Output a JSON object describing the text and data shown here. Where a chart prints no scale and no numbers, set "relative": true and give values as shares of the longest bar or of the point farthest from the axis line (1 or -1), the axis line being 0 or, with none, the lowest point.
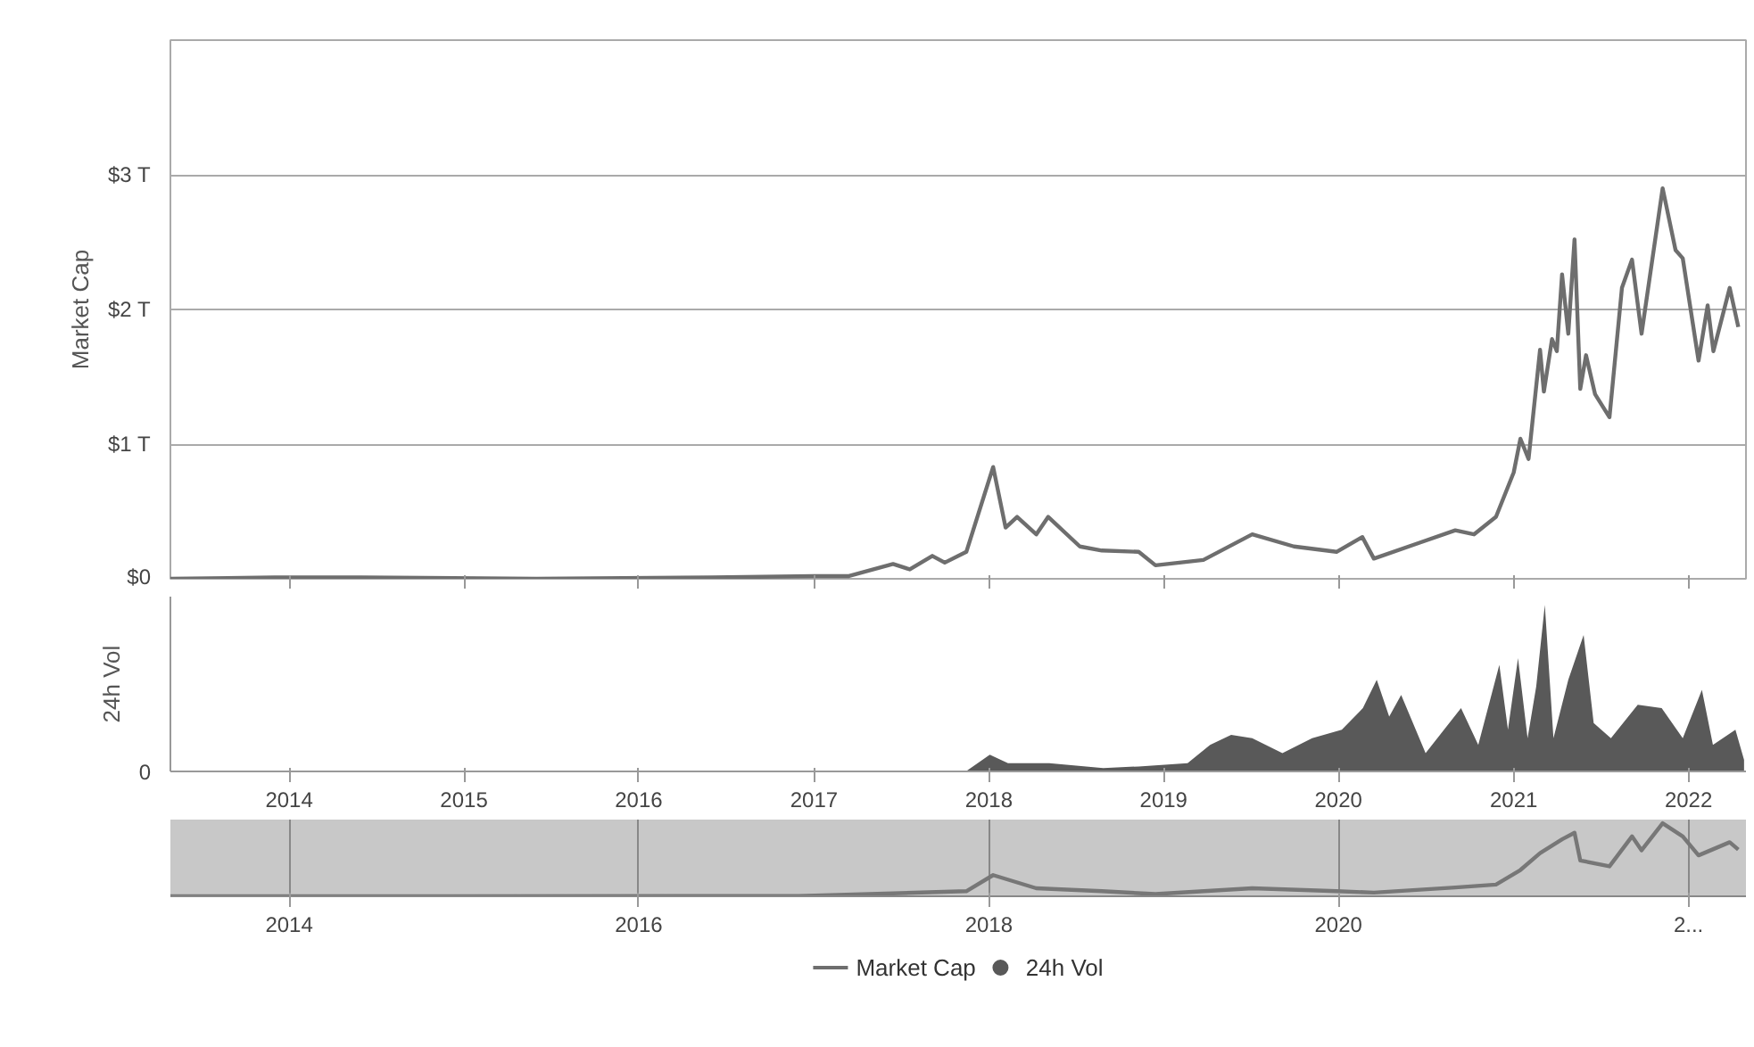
{
  "chart_data": [
    {
      "type": "line",
      "ylabel": "Market Cap",
      "xlim": [
        "2013-04-28",
        "2022-05-01"
      ],
      "xticks": [
        "2014",
        "2015",
        "2016",
        "2017",
        "2018",
        "2019",
        "2020",
        "2021",
        "2022"
      ],
      "ylim": [
        0,
        4
      ],
      "yticks": [
        {
          "value": 0,
          "label": "$0"
        },
        {
          "value": 1,
          "label": "$1 T"
        },
        {
          "value": 2,
          "label": "$2 T"
        },
        {
          "value": 3,
          "label": "$3 T"
        },
        {
          "value": 4,
          "label": null
        }
      ],
      "grid": "y",
      "tick_labels": "y",
      "legend": "bottom",
      "series": [
        {
          "name": "Market Cap",
          "color": "#6e6e6e",
          "x": [
            "2013-04-28",
            "2013-12-01",
            "2014-06-01",
            "2015-06-01",
            "2016-06-01",
            "2017-01-01",
            "2017-03-15",
            "2017-06-15",
            "2017-07-20",
            "2017-09-05",
            "2017-10-01",
            "2017-11-15",
            "2018-01-10",
            "2018-02-05",
            "2018-03-01",
            "2018-04-10",
            "2018-05-05",
            "2018-07-10",
            "2018-08-25",
            "2018-11-10",
            "2018-12-15",
            "2019-03-25",
            "2019-07-05",
            "2019-09-30",
            "2019-12-28",
            "2020-02-20",
            "2020-03-15",
            "2020-06-20",
            "2020-09-01",
            "2020-10-10",
            "2020-11-25",
            "2021-01-01",
            "2021-01-15",
            "2021-02-01",
            "2021-02-25",
            "2021-03-05",
            "2021-03-22",
            "2021-04-01",
            "2021-04-12",
            "2021-04-25",
            "2021-05-08",
            "2021-05-20",
            "2021-06-01",
            "2021-06-20",
            "2021-07-20",
            "2021-08-15",
            "2021-09-05",
            "2021-09-25",
            "2021-11-08",
            "2021-12-05",
            "2021-12-20",
            "2022-01-22",
            "2022-02-10",
            "2022-02-22",
            "2022-03-28",
            "2022-04-15"
          ],
          "values": [
            0.0,
            0.01,
            0.01,
            0.0,
            0.01,
            0.02,
            0.02,
            0.11,
            0.07,
            0.17,
            0.12,
            0.2,
            0.83,
            0.38,
            0.46,
            0.33,
            0.46,
            0.24,
            0.21,
            0.2,
            0.1,
            0.14,
            0.33,
            0.24,
            0.2,
            0.31,
            0.15,
            0.27,
            0.36,
            0.33,
            0.46,
            0.79,
            1.04,
            0.89,
            1.7,
            1.39,
            1.78,
            1.69,
            2.26,
            1.82,
            2.52,
            1.41,
            1.66,
            1.37,
            1.2,
            2.16,
            2.37,
            1.82,
            2.9,
            2.44,
            2.38,
            1.62,
            2.03,
            1.69,
            2.16,
            1.87
          ]
        }
      ]
    },
    {
      "type": "area",
      "ylabel": "24h Vol",
      "relative": true,
      "xlim": [
        "2013-04-28",
        "2022-05-01"
      ],
      "xticks": [
        "2014",
        "2015",
        "2016",
        "2017",
        "2018",
        "2019",
        "2020",
        "2021",
        "2022"
      ],
      "legend": "bottom",
      "annotations": [
        "0"
      ],
      "series": [
        {
          "name": "24h Vol",
          "color": "#595959",
          "x": [
            "2017-11-14",
            "2018-01-03",
            "2018-02-10",
            "2018-05-07",
            "2018-08-28",
            "2018-11-10",
            "2019-02-20",
            "2019-04-08",
            "2019-05-22",
            "2019-07-05",
            "2019-09-06",
            "2019-11-07",
            "2020-01-08",
            "2020-02-21",
            "2020-03-21",
            "2020-04-16",
            "2020-05-11",
            "2020-07-01",
            "2020-09-13",
            "2020-10-19",
            "2020-12-02",
            "2020-12-20",
            "2021-01-10",
            "2021-01-30",
            "2021-02-17",
            "2021-03-07",
            "2021-03-25",
            "2021-04-25",
            "2021-05-27",
            "2021-06-17",
            "2021-07-23",
            "2021-09-17",
            "2021-11-06",
            "2021-12-20",
            "2022-01-29",
            "2022-02-21",
            "2022-04-09",
            "2022-04-27"
          ],
          "values": [
            0.0,
            0.1,
            0.05,
            0.05,
            0.02,
            0.03,
            0.05,
            0.16,
            0.22,
            0.2,
            0.11,
            0.2,
            0.25,
            0.38,
            0.55,
            0.33,
            0.46,
            0.11,
            0.38,
            0.16,
            0.64,
            0.25,
            0.68,
            0.2,
            0.51,
            1.0,
            0.2,
            0.55,
            0.82,
            0.29,
            0.2,
            0.4,
            0.38,
            0.2,
            0.49,
            0.16,
            0.25,
            0.07
          ]
        }
      ]
    },
    {
      "type": "line",
      "relative": true,
      "xlim": [
        "2013-04-28",
        "2022-05-01"
      ],
      "xticks": [
        "2014",
        "2016",
        "2018",
        "2020",
        {
          "value": "2022",
          "label": "2..."
        }
      ],
      "grid": "x",
      "series": [
        {
          "color": "#777777",
          "x": [
            "2013-04-28",
            "2016-12-01",
            "2017-06-15",
            "2017-11-15",
            "2018-01-10",
            "2018-04-10",
            "2018-08-25",
            "2018-12-15",
            "2019-07-05",
            "2019-12-28",
            "2020-03-15",
            "2020-09-01",
            "2020-11-25",
            "2021-01-15",
            "2021-02-25",
            "2021-04-12",
            "2021-05-08",
            "2021-05-20",
            "2021-07-20",
            "2021-09-05",
            "2021-09-25",
            "2021-11-08",
            "2021-12-20",
            "2022-01-22",
            "2022-03-28",
            "2022-04-15"
          ],
          "values": [
            0.0,
            0.003,
            0.04,
            0.07,
            0.29,
            0.11,
            0.07,
            0.03,
            0.11,
            0.07,
            0.05,
            0.12,
            0.16,
            0.36,
            0.59,
            0.78,
            0.87,
            0.49,
            0.41,
            0.82,
            0.63,
            1.0,
            0.82,
            0.56,
            0.74,
            0.64
          ]
        }
      ]
    }
  ]
}
